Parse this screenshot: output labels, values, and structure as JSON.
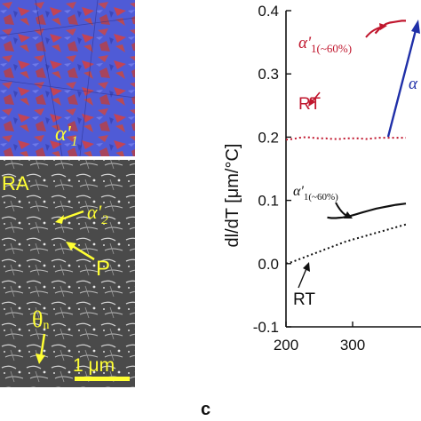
{
  "images": {
    "ebsd_label": "α'",
    "ebsd_label_sub": "1",
    "sem_labels": {
      "ra": "RA",
      "alpha2": "α'",
      "alpha2_sub": "2",
      "p": "P",
      "theta": "θ",
      "theta_sub": "n",
      "scale_bar": "1 μm"
    }
  },
  "panel_label": "c",
  "chart_data": {
    "type": "line",
    "xlim": [
      200,
      400
    ],
    "ylim": [
      -0.1,
      0.4
    ],
    "xticks": [
      200,
      300
    ],
    "yticks": [
      -0.1,
      0.0,
      0.1,
      0.2,
      0.3,
      0.4
    ],
    "xtick_labels": [
      "200",
      "300"
    ],
    "ytick_labels": [
      "-0.1",
      "0.0",
      "0.1",
      "0.2",
      "0.3",
      "0.4"
    ],
    "ylabel": "dl/dT [μm/°C]",
    "series": [
      {
        "name": "α'1(~60%)",
        "style": "solid",
        "color": "#c0162d",
        "x": [
          334,
          340,
          346,
          350,
          356,
          362,
          368,
          374,
          380
        ],
        "y": [
          0.364,
          0.371,
          0.376,
          0.379,
          0.381,
          0.382,
          0.383,
          0.384,
          0.384
        ]
      },
      {
        "name": "RT",
        "style": "dotted",
        "color": "#c0162d",
        "x": [
          200,
          210,
          220,
          230,
          240,
          250,
          260,
          270,
          280,
          290,
          300,
          310,
          320,
          330,
          340,
          350,
          360,
          370,
          380
        ],
        "y": [
          0.196,
          0.197,
          0.199,
          0.2,
          0.199,
          0.198,
          0.198,
          0.197,
          0.197,
          0.198,
          0.198,
          0.198,
          0.197,
          0.198,
          0.199,
          0.199,
          0.199,
          0.199,
          0.199
        ]
      },
      {
        "name": "α'1(~60%)",
        "style": "solid",
        "color": "#111111",
        "x": [
          262,
          268,
          275,
          285,
          295,
          305,
          315,
          325,
          335,
          345,
          355,
          365,
          380
        ],
        "y": [
          0.073,
          0.072,
          0.072,
          0.073,
          0.075,
          0.078,
          0.081,
          0.084,
          0.087,
          0.089,
          0.091,
          0.093,
          0.095
        ]
      },
      {
        "name": "RT",
        "style": "dotted",
        "color": "#111111",
        "x": [
          200,
          210,
          220,
          230,
          240,
          250,
          260,
          270,
          280,
          290,
          300,
          310,
          320,
          330,
          340,
          350,
          360,
          370,
          380
        ],
        "y": [
          0.0,
          0.003,
          0.007,
          0.011,
          0.015,
          0.019,
          0.023,
          0.027,
          0.031,
          0.035,
          0.038,
          0.041,
          0.044,
          0.047,
          0.05,
          0.053,
          0.056,
          0.059,
          0.062
        ]
      }
    ],
    "annotations": [
      {
        "text": "α'",
        "sub": "1(~60%)",
        "color": "#c0162d",
        "size": "large"
      },
      {
        "text": "RT",
        "sub": "",
        "color": "#c0162d",
        "size": "large"
      },
      {
        "text": "α'",
        "sub": "1(~60%)",
        "color": "#111111",
        "size": "small"
      },
      {
        "text": "RT",
        "sub": "",
        "color": "#111111",
        "size": "large"
      },
      {
        "text": "α",
        "sub": "",
        "color": "#1f2fa8",
        "size": "large"
      }
    ]
  }
}
